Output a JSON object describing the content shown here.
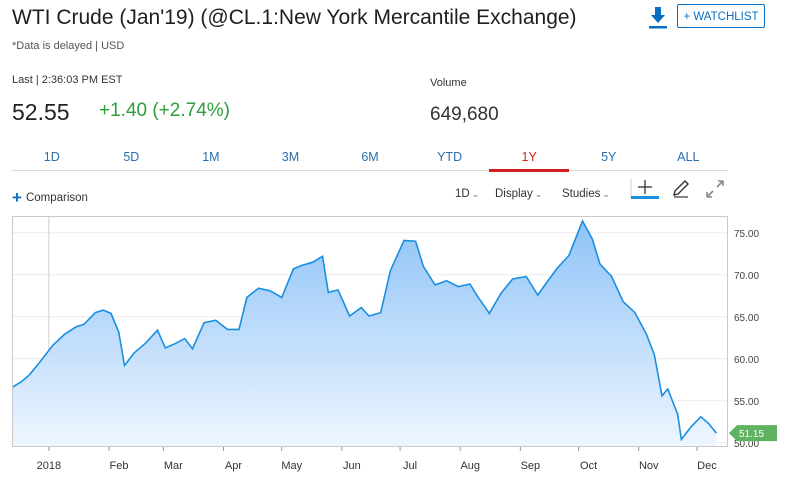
{
  "header": {
    "title": "WTI Crude (Jan'19) (@CL.1:New York Mercantile Exchange)",
    "subtitle": "*Data is delayed | USD",
    "watchlist_label": "+ WATCHLIST"
  },
  "quote": {
    "last_label": "Last | 2:36:03 PM EST",
    "price": "52.55",
    "change": "+1.40 (+2.74%)",
    "volume_label": "Volume",
    "volume": "649,680"
  },
  "tabs": [
    {
      "label": "1D",
      "active": false
    },
    {
      "label": "5D",
      "active": false
    },
    {
      "label": "1M",
      "active": false
    },
    {
      "label": "3M",
      "active": false
    },
    {
      "label": "6M",
      "active": false
    },
    {
      "label": "YTD",
      "active": false
    },
    {
      "label": "1Y",
      "active": true
    },
    {
      "label": "5Y",
      "active": false
    },
    {
      "label": "ALL",
      "active": false
    }
  ],
  "toolbar": {
    "comparison_label": "Comparison",
    "interval_label": "1D",
    "display_label": "Display",
    "studies_label": "Studies"
  },
  "colors": {
    "line": "#1a8fe0",
    "area_top": "#8fc3f7",
    "area_bottom": "#eef6ff",
    "up": "#2e9d3a",
    "accent": "#0a6fc2",
    "active_tab": "#d02020",
    "last_marker": "#5fb25f"
  },
  "chart_data": {
    "type": "area",
    "ylim": [
      49.5,
      77
    ],
    "y_ticks": [
      "75.00",
      "70.00",
      "65.00",
      "60.00",
      "55.00",
      "50.00"
    ],
    "x_ticks": [
      "2018",
      "Feb",
      "Mar",
      "Apr",
      "May",
      "Jun",
      "Jul",
      "Aug",
      "Sep",
      "Oct",
      "Nov",
      "Dec"
    ],
    "last_value_label": "51.15",
    "last_value": 51.15,
    "x": [
      "2017-12-13",
      "2017-12-18",
      "2017-12-22",
      "2017-12-28",
      "2018-01-03",
      "2018-01-09",
      "2018-01-15",
      "2018-01-19",
      "2018-01-25",
      "2018-01-29",
      "2018-02-02",
      "2018-02-06",
      "2018-02-09",
      "2018-02-14",
      "2018-02-20",
      "2018-02-26",
      "2018-03-02",
      "2018-03-07",
      "2018-03-12",
      "2018-03-16",
      "2018-03-22",
      "2018-03-28",
      "2018-04-03",
      "2018-04-09",
      "2018-04-13",
      "2018-04-19",
      "2018-04-25",
      "2018-05-01",
      "2018-05-07",
      "2018-05-11",
      "2018-05-17",
      "2018-05-22",
      "2018-05-25",
      "2018-05-30",
      "2018-06-05",
      "2018-06-11",
      "2018-06-15",
      "2018-06-21",
      "2018-06-26",
      "2018-07-03",
      "2018-07-09",
      "2018-07-13",
      "2018-07-19",
      "2018-07-25",
      "2018-07-31",
      "2018-08-06",
      "2018-08-10",
      "2018-08-16",
      "2018-08-22",
      "2018-08-28",
      "2018-09-04",
      "2018-09-10",
      "2018-09-14",
      "2018-09-20",
      "2018-09-26",
      "2018-10-03",
      "2018-10-08",
      "2018-10-12",
      "2018-10-18",
      "2018-10-24",
      "2018-10-30",
      "2018-11-05",
      "2018-11-09",
      "2018-11-13",
      "2018-11-16",
      "2018-11-21",
      "2018-11-23",
      "2018-11-28",
      "2018-12-03",
      "2018-12-07",
      "2018-12-11"
    ],
    "y": [
      56.6,
      57.3,
      58.1,
      59.8,
      61.6,
      62.9,
      63.8,
      64.1,
      65.5,
      65.8,
      65.4,
      63.2,
      59.2,
      60.7,
      61.9,
      63.4,
      61.3,
      61.8,
      62.4,
      61.2,
      64.3,
      64.6,
      63.5,
      63.5,
      67.3,
      68.4,
      68.1,
      67.3,
      70.7,
      71.1,
      71.5,
      72.2,
      67.9,
      68.2,
      65.1,
      66.1,
      65.1,
      65.5,
      70.5,
      74.1,
      74.0,
      71.0,
      68.8,
      69.3,
      68.6,
      68.9,
      67.4,
      65.4,
      67.8,
      69.5,
      69.8,
      67.6,
      68.9,
      70.8,
      72.3,
      76.4,
      74.3,
      71.3,
      69.8,
      66.8,
      65.5,
      62.9,
      60.5,
      55.6,
      56.4,
      53.4,
      50.4,
      51.9,
      53.1,
      52.3,
      51.15
    ]
  }
}
